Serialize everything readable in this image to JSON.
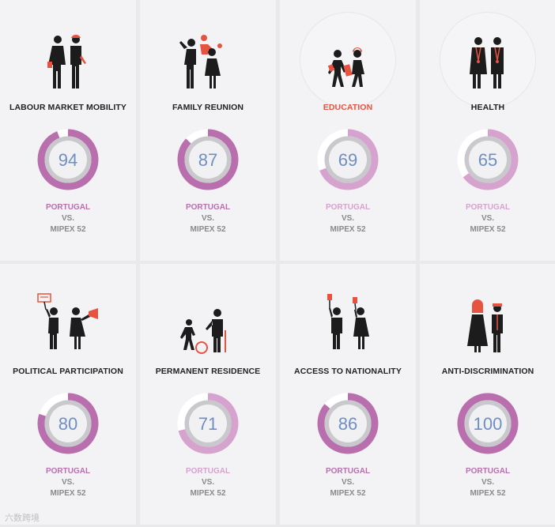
{
  "cards": [
    {
      "title": "LABOUR MARKET MOBILITY",
      "value": 94,
      "country": "PORTUGAL",
      "vs": "VS.",
      "reference": "MIPEX 52",
      "icon": "couple-workers-icon",
      "color": "#b96fae",
      "tone": "dark",
      "active": false
    },
    {
      "title": "FAMILY REUNION",
      "value": 87,
      "country": "PORTUGAL",
      "vs": "VS.",
      "reference": "MIPEX 52",
      "icon": "family-reunion-icon",
      "color": "#b96fae",
      "tone": "dark",
      "active": false
    },
    {
      "title": "EDUCATION",
      "value": 69,
      "country": "PORTUGAL",
      "vs": "VS.",
      "reference": "MIPEX 52",
      "icon": "children-school-icon",
      "color": "#d6a3cf",
      "tone": "light",
      "active": true
    },
    {
      "title": "HEALTH",
      "value": 65,
      "country": "PORTUGAL",
      "vs": "VS.",
      "reference": "MIPEX 52",
      "icon": "doctors-icon",
      "color": "#d6a3cf",
      "tone": "light",
      "active": false
    },
    {
      "title": "POLITICAL PARTICIPATION",
      "value": 80,
      "country": "PORTUGAL",
      "vs": "VS.",
      "reference": "MIPEX 52",
      "icon": "protest-megaphone-icon",
      "color": "#b96fae",
      "tone": "dark",
      "active": false
    },
    {
      "title": "PERMANENT RESIDENCE",
      "value": 71,
      "country": "PORTUGAL",
      "vs": "VS.",
      "reference": "MIPEX 52",
      "icon": "child-elder-icon",
      "color": "#d6a3cf",
      "tone": "light",
      "active": false
    },
    {
      "title": "ACCESS TO NATIONALITY",
      "value": 86,
      "country": "PORTUGAL",
      "vs": "VS.",
      "reference": "MIPEX 52",
      "icon": "voters-icon",
      "color": "#b96fae",
      "tone": "dark",
      "active": false
    },
    {
      "title": "ANTI-DISCRIMINATION",
      "value": 100,
      "country": "PORTUGAL",
      "vs": "VS.",
      "reference": "MIPEX 52",
      "icon": "diverse-people-icon",
      "color": "#b96fae",
      "tone": "dark",
      "active": false
    }
  ],
  "gauge_track_color": "#ffffff",
  "gauge_inner_color": "#c9c9cd",
  "gauge_center_color": "#f1f1f3",
  "watermark": "六数跨境"
}
